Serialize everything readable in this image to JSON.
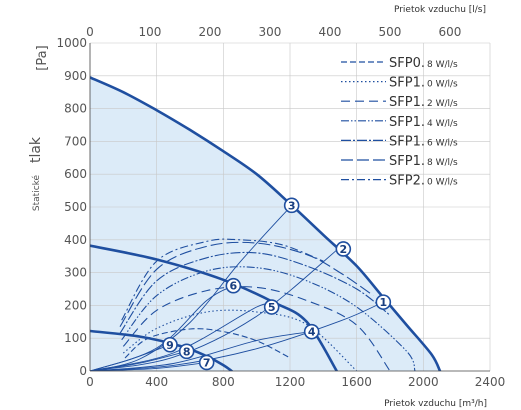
{
  "chart_data": {
    "type": "line",
    "title": "",
    "xlabel": "Prietok vzduchu [m³/h]",
    "x2label": "Prietok vzduchu [l/s]",
    "ylabel_main": "tlak",
    "ylabel_prefix": "Statické",
    "yunit": "[Pa]",
    "xlim": [
      0,
      2400
    ],
    "ylim": [
      0,
      1000
    ],
    "x2lim": [
      0,
      666.67
    ],
    "x_ticks": [
      0,
      400,
      800,
      1200,
      1600,
      2000,
      2400
    ],
    "x2_ticks": [
      0,
      100,
      200,
      300,
      400,
      500,
      600
    ],
    "y_ticks": [
      0,
      100,
      200,
      300,
      400,
      500,
      600,
      700,
      800,
      900,
      1000
    ],
    "grid": true,
    "legend_position": "top-right",
    "operating_area_color": "#dcebf8",
    "fan_curve_color": "#1f4fa0",
    "sfp_curve_color": "#1f4fa0",
    "fan_curves": [
      {
        "points": [
          [
            0,
            895
          ],
          [
            200,
            850
          ],
          [
            400,
            795
          ],
          [
            600,
            735
          ],
          [
            800,
            670
          ],
          [
            1000,
            600
          ],
          [
            1200,
            510
          ],
          [
            1400,
            415
          ],
          [
            1600,
            320
          ],
          [
            1750,
            230
          ],
          [
            1900,
            140
          ],
          [
            2050,
            50
          ],
          [
            2100,
            0
          ]
        ]
      },
      {
        "points": [
          [
            0,
            382
          ],
          [
            400,
            340
          ],
          [
            800,
            278
          ],
          [
            1100,
            210
          ],
          [
            1300,
            150
          ],
          [
            1480,
            0
          ]
        ]
      },
      {
        "points": [
          [
            0,
            122
          ],
          [
            300,
            105
          ],
          [
            550,
            75
          ],
          [
            700,
            45
          ],
          [
            800,
            18
          ],
          [
            850,
            0
          ]
        ]
      }
    ],
    "system_curves": [
      {
        "label": "1",
        "points": [
          [
            0,
            0
          ],
          [
            500,
            17
          ],
          [
            1000,
            68
          ],
          [
            1500,
            152
          ],
          [
            1760,
            210
          ]
        ]
      },
      {
        "label": "2",
        "points": [
          [
            0,
            0
          ],
          [
            500,
            42
          ],
          [
            1000,
            167
          ],
          [
            1500,
            377
          ]
        ]
      },
      {
        "label": "3",
        "points": [
          [
            0,
            0
          ],
          [
            300,
            37
          ],
          [
            600,
            148
          ],
          [
            900,
            332
          ],
          [
            1210,
            505
          ]
        ]
      },
      {
        "label": "4",
        "points": [
          [
            0,
            0
          ],
          [
            500,
            23
          ],
          [
            1000,
            93
          ],
          [
            1330,
            120
          ]
        ]
      },
      {
        "label": "5",
        "points": [
          [
            0,
            0
          ],
          [
            500,
            55
          ],
          [
            1000,
            195
          ],
          [
            1090,
            195
          ]
        ]
      },
      {
        "label": "6",
        "points": [
          [
            0,
            0
          ],
          [
            400,
            70
          ],
          [
            700,
            215
          ],
          [
            860,
            260
          ]
        ]
      },
      {
        "label": "7",
        "points": [
          [
            0,
            0
          ],
          [
            400,
            8
          ],
          [
            700,
            26
          ]
        ]
      },
      {
        "label": "8",
        "points": [
          [
            0,
            0
          ],
          [
            300,
            24
          ],
          [
            580,
            60
          ]
        ]
      },
      {
        "label": "9",
        "points": [
          [
            0,
            0
          ],
          [
            250,
            37
          ],
          [
            480,
            80
          ]
        ]
      }
    ],
    "point_labels": [
      {
        "label": "1",
        "x": 1760,
        "y": 210
      },
      {
        "label": "2",
        "x": 1520,
        "y": 372
      },
      {
        "label": "3",
        "x": 1210,
        "y": 505
      },
      {
        "label": "4",
        "x": 1330,
        "y": 120
      },
      {
        "label": "5",
        "x": 1090,
        "y": 195
      },
      {
        "label": "6",
        "x": 860,
        "y": 260
      },
      {
        "label": "7",
        "x": 700,
        "y": 26
      },
      {
        "label": "8",
        "x": 580,
        "y": 60
      },
      {
        "label": "9",
        "x": 480,
        "y": 80
      }
    ],
    "sfp_series": [
      {
        "name": "SFP0.8 W/l/s",
        "legend_main": "SFP0.",
        "legend_sub": "8 W/l/s",
        "dash": "6,3",
        "points": [
          [
            210,
            40
          ],
          [
            350,
            100
          ],
          [
            600,
            128
          ],
          [
            800,
            120
          ],
          [
            1000,
            92
          ],
          [
            1200,
            40
          ]
        ]
      },
      {
        "name": "SFP1.0 W/l/s",
        "legend_main": "SFP1.",
        "legend_sub": "0 W/l/s",
        "dash": "1.5,2.5",
        "points": [
          [
            200,
            55
          ],
          [
            400,
            130
          ],
          [
            700,
            180
          ],
          [
            1000,
            180
          ],
          [
            1300,
            142
          ],
          [
            1600,
            0
          ]
        ]
      },
      {
        "name": "SFP1.2 W/l/s",
        "legend_main": "SFP1.",
        "legend_sub": "2 W/l/s",
        "dash": "9,5",
        "points": [
          [
            200,
            75
          ],
          [
            400,
            185
          ],
          [
            700,
            245
          ],
          [
            1000,
            255
          ],
          [
            1300,
            215
          ],
          [
            1600,
            140
          ],
          [
            1800,
            0
          ]
        ]
      },
      {
        "name": "SFP1.4 W/l/s",
        "legend_main": "SFP1.",
        "legend_sub": "4 W/l/s",
        "dash": "8,2,1.5,2,1.5,2",
        "points": [
          [
            190,
            95
          ],
          [
            400,
            230
          ],
          [
            700,
            305
          ],
          [
            1000,
            315
          ],
          [
            1300,
            275
          ],
          [
            1600,
            195
          ],
          [
            1900,
            60
          ],
          [
            1950,
            0
          ]
        ]
      },
      {
        "name": "SFP1.6 W/l/s",
        "legend_main": "SFP1.",
        "legend_sub": "6 W/l/s",
        "dash": "10,2,2,2",
        "points": [
          [
            180,
            115
          ],
          [
            400,
            275
          ],
          [
            700,
            345
          ],
          [
            1000,
            360
          ],
          [
            1300,
            320
          ],
          [
            1600,
            250
          ],
          [
            1800,
            170
          ]
        ]
      },
      {
        "name": "SFP1.8 W/l/s",
        "legend_main": "SFP1.",
        "legend_sub": "8 W/l/s",
        "dash": "12,4",
        "points": [
          [
            180,
            135
          ],
          [
            400,
            310
          ],
          [
            700,
            380
          ],
          [
            1000,
            390
          ],
          [
            1300,
            355
          ],
          [
            1500,
            300
          ],
          [
            1700,
            230
          ]
        ]
      },
      {
        "name": "SFP2.0 W/l/s",
        "legend_main": "SFP2.",
        "legend_sub": "0 W/l/s",
        "dash": "8,3,2,3",
        "points": [
          [
            190,
            155
          ],
          [
            400,
            335
          ],
          [
            700,
            395
          ],
          [
            900,
            400
          ],
          [
            1150,
            385
          ],
          [
            1400,
            335
          ]
        ]
      }
    ]
  }
}
